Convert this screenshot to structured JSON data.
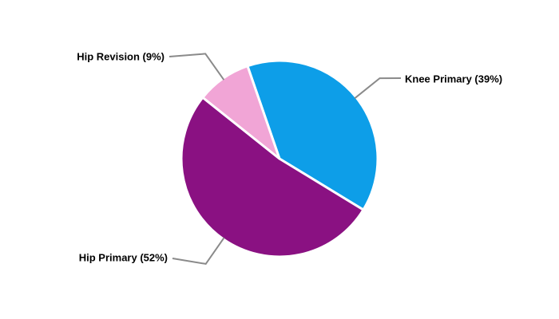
{
  "chart_data": {
    "type": "pie",
    "categories": [
      "Knee Primary",
      "Hip Primary",
      "Hip Revision"
    ],
    "values": [
      39,
      52,
      9
    ],
    "unit": "percent",
    "slices": [
      {
        "label": "Knee Primary",
        "value": 39,
        "display": "Knee Primary (39%)",
        "color": "#0D9EE8"
      },
      {
        "label": "Hip Primary",
        "value": 52,
        "display": "Hip Primary (52%)",
        "color": "#8A1182"
      },
      {
        "label": "Hip Revision",
        "value": 9,
        "display": "Hip Revision (9%)",
        "color": "#F1A5D6"
      }
    ],
    "start_angle_deg": -19,
    "direction": "clockwise",
    "label_style": "callout-with-leader-line",
    "legend_position": "none",
    "colors": {
      "background": "#FFFFFF",
      "slice_border": "#FFFFFF",
      "leader_line": "#8A8A8A",
      "label_text": "#000000"
    }
  }
}
